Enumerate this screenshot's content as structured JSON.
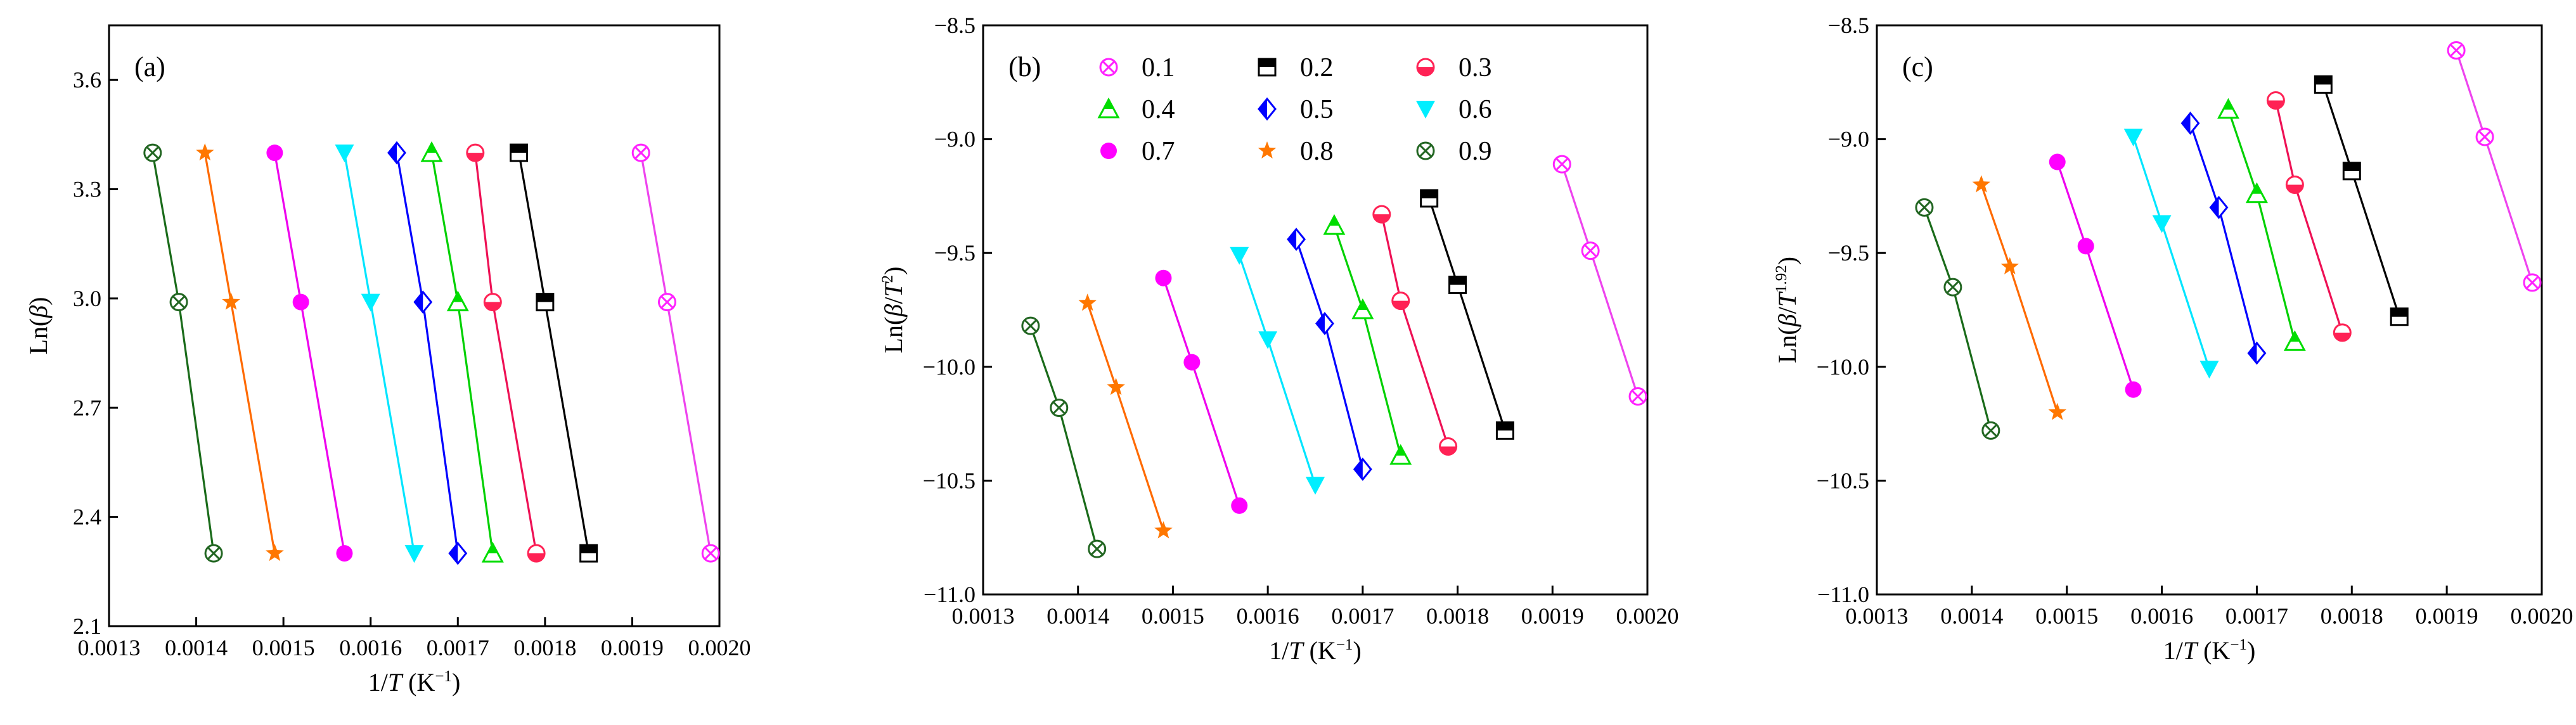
{
  "figure": {
    "colors": {
      "0.1": "#ee44ee",
      "0.2": "#000000",
      "0.3": "#ee1155",
      "0.4": "#00d000",
      "0.5": "#0000ff",
      "0.6": "#00e5ff",
      "0.7": "#ee00ee",
      "0.8": "#ff6a00",
      "0.9": "#1a6b1a"
    },
    "marker_colors": {
      "0.1": "#ff22ff",
      "0.2": "#000000",
      "0.3": "#ff2255",
      "0.4": "#00dd00",
      "0.5": "#0000ff",
      "0.6": "#00eeff",
      "0.7": "#ff00ff",
      "0.8": "#ff7700",
      "0.9": "#226622"
    },
    "markers": {
      "0.1": "x-circle",
      "0.2": "half-square",
      "0.3": "half-circle",
      "0.4": "half-triangle",
      "0.5": "half-diamond",
      "0.6": "triangle-down",
      "0.7": "circle",
      "0.8": "star",
      "0.9": "x-circle"
    }
  },
  "chart_data": [
    {
      "type": "line",
      "panel_label": "(a)",
      "xlabel": "1/T (K⁻¹)",
      "ylabel": "Ln(β)",
      "xlim": [
        0.0013,
        0.002
      ],
      "ylim": [
        2.1,
        3.75
      ],
      "xticks": [
        "0.0013",
        "0.0014",
        "0.0015",
        "0.0016",
        "0.0017",
        "0.0018",
        "0.0019",
        "0.0020"
      ],
      "yticks": [
        "2.1",
        "2.4",
        "2.7",
        "3.0",
        "3.3",
        "3.6"
      ],
      "series": [
        {
          "name": "0.1",
          "x": [
            0.00191,
            0.00194,
            0.00199
          ],
          "y": [
            3.4,
            2.99,
            2.3
          ]
        },
        {
          "name": "0.2",
          "x": [
            0.00177,
            0.0018,
            0.00185
          ],
          "y": [
            3.4,
            2.99,
            2.3
          ]
        },
        {
          "name": "0.3",
          "x": [
            0.00172,
            0.00174,
            0.00179
          ],
          "y": [
            3.4,
            2.99,
            2.3
          ]
        },
        {
          "name": "0.4",
          "x": [
            0.00167,
            0.0017,
            0.00174
          ],
          "y": [
            3.4,
            2.99,
            2.3
          ]
        },
        {
          "name": "0.5",
          "x": [
            0.00163,
            0.00166,
            0.0017
          ],
          "y": [
            3.4,
            2.99,
            2.3
          ]
        },
        {
          "name": "0.6",
          "x": [
            0.00157,
            0.0016,
            0.00165
          ],
          "y": [
            3.4,
            2.99,
            2.3
          ]
        },
        {
          "name": "0.7",
          "x": [
            0.00149,
            0.00152,
            0.00157
          ],
          "y": [
            3.4,
            2.99,
            2.3
          ]
        },
        {
          "name": "0.8",
          "x": [
            0.00141,
            0.00144,
            0.00149
          ],
          "y": [
            3.4,
            2.99,
            2.3
          ]
        },
        {
          "name": "0.9",
          "x": [
            0.00135,
            0.00138,
            0.00142
          ],
          "y": [
            3.4,
            2.99,
            2.3
          ]
        }
      ]
    },
    {
      "type": "line",
      "panel_label": "(b)",
      "xlabel": "1/T (K⁻¹)",
      "ylabel": "Ln(β/T²)",
      "xlim": [
        0.0013,
        0.002
      ],
      "ylim": [
        -11.0,
        -8.5
      ],
      "xticks": [
        "0.0013",
        "0.0014",
        "0.0015",
        "0.0016",
        "0.0017",
        "0.0018",
        "0.0019",
        "0.0020"
      ],
      "yticks": [
        "−11.0",
        "−10.5",
        "−10.0",
        "−9.5",
        "−9.0",
        "−8.5"
      ],
      "legend": {
        "position": "top",
        "columns": 3,
        "entries": [
          "0.1",
          "0.2",
          "0.3",
          "0.4",
          "0.5",
          "0.6",
          "0.7",
          "0.8",
          "0.9"
        ]
      },
      "series": [
        {
          "name": "0.1",
          "x": [
            0.00191,
            0.00194,
            0.00199
          ],
          "y": [
            -9.11,
            -9.49,
            -10.13
          ]
        },
        {
          "name": "0.2",
          "x": [
            0.00177,
            0.0018,
            0.00185
          ],
          "y": [
            -9.26,
            -9.64,
            -10.28
          ]
        },
        {
          "name": "0.3",
          "x": [
            0.00172,
            0.00174,
            0.00179
          ],
          "y": [
            -9.33,
            -9.71,
            -10.35
          ]
        },
        {
          "name": "0.4",
          "x": [
            0.00167,
            0.0017,
            0.00174
          ],
          "y": [
            -9.38,
            -9.75,
            -10.39
          ]
        },
        {
          "name": "0.5",
          "x": [
            0.00163,
            0.00166,
            0.0017
          ],
          "y": [
            -9.44,
            -9.81,
            -10.45
          ]
        },
        {
          "name": "0.6",
          "x": [
            0.00157,
            0.0016,
            0.00165
          ],
          "y": [
            -9.51,
            -9.88,
            -10.52
          ]
        },
        {
          "name": "0.7",
          "x": [
            0.00149,
            0.00152,
            0.00157
          ],
          "y": [
            -9.61,
            -9.98,
            -10.61
          ]
        },
        {
          "name": "0.8",
          "x": [
            0.00141,
            0.00144,
            0.00149
          ],
          "y": [
            -9.72,
            -10.09,
            -10.72
          ]
        },
        {
          "name": "0.9",
          "x": [
            0.00135,
            0.00138,
            0.00142
          ],
          "y": [
            -9.82,
            -10.18,
            -10.8
          ]
        }
      ]
    },
    {
      "type": "line",
      "panel_label": "(c)",
      "xlabel": "1/T (K⁻¹)",
      "ylabel": "Ln(β/T¹·⁹²)",
      "xlim": [
        0.0013,
        0.002
      ],
      "ylim": [
        -11.0,
        -8.5
      ],
      "xticks": [
        "0.0013",
        "0.0014",
        "0.0015",
        "0.0016",
        "0.0017",
        "0.0018",
        "0.0019",
        "0.0020"
      ],
      "yticks": [
        "−11.0",
        "−10.5",
        "−10.0",
        "−9.5",
        "−9.0",
        "−8.5"
      ],
      "series": [
        {
          "name": "0.1",
          "x": [
            0.00191,
            0.00194,
            0.00199
          ],
          "y": [
            -8.61,
            -8.99,
            -9.63
          ]
        },
        {
          "name": "0.2",
          "x": [
            0.00177,
            0.0018,
            0.00185
          ],
          "y": [
            -8.76,
            -9.14,
            -9.78
          ]
        },
        {
          "name": "0.3",
          "x": [
            0.00172,
            0.00174,
            0.00179
          ],
          "y": [
            -8.83,
            -9.2,
            -9.85
          ]
        },
        {
          "name": "0.4",
          "x": [
            0.00167,
            0.0017,
            0.00174
          ],
          "y": [
            -8.87,
            -9.24,
            -9.89
          ]
        },
        {
          "name": "0.5",
          "x": [
            0.00163,
            0.00166,
            0.0017
          ],
          "y": [
            -8.93,
            -9.3,
            -9.94
          ]
        },
        {
          "name": "0.6",
          "x": [
            0.00157,
            0.0016,
            0.00165
          ],
          "y": [
            -8.99,
            -9.37,
            -10.01
          ]
        },
        {
          "name": "0.7",
          "x": [
            0.00149,
            0.00152,
            0.00157
          ],
          "y": [
            -9.1,
            -9.47,
            -10.1
          ]
        },
        {
          "name": "0.8",
          "x": [
            0.00141,
            0.00144,
            0.00149
          ],
          "y": [
            -9.2,
            -9.56,
            -10.2
          ]
        },
        {
          "name": "0.9",
          "x": [
            0.00135,
            0.00138,
            0.00142
          ],
          "y": [
            -9.3,
            -9.65,
            -10.28
          ]
        }
      ]
    }
  ]
}
